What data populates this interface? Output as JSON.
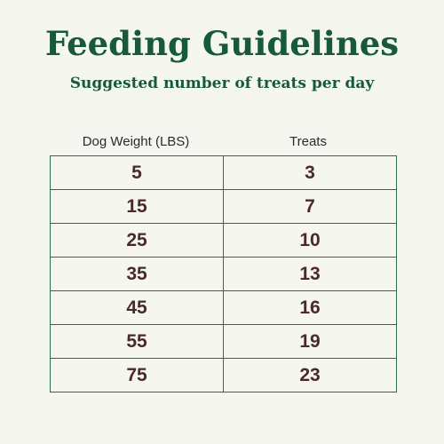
{
  "title": "Feeding Guidelines",
  "subtitle": "Suggested number of treats per day",
  "table": {
    "headers": [
      "Dog Weight (LBS)",
      "Treats"
    ],
    "rows": [
      {
        "weight": "5",
        "treats": "3"
      },
      {
        "weight": "15",
        "treats": "7"
      },
      {
        "weight": "25",
        "treats": "10"
      },
      {
        "weight": "35",
        "treats": "13"
      },
      {
        "weight": "45",
        "treats": "16"
      },
      {
        "weight": "55",
        "treats": "19"
      },
      {
        "weight": "75",
        "treats": "23"
      }
    ]
  },
  "colors": {
    "background": "#f6f6f0",
    "heading": "#18593a",
    "border": "#2c6a4c",
    "value_text": "#4a2a2a"
  }
}
